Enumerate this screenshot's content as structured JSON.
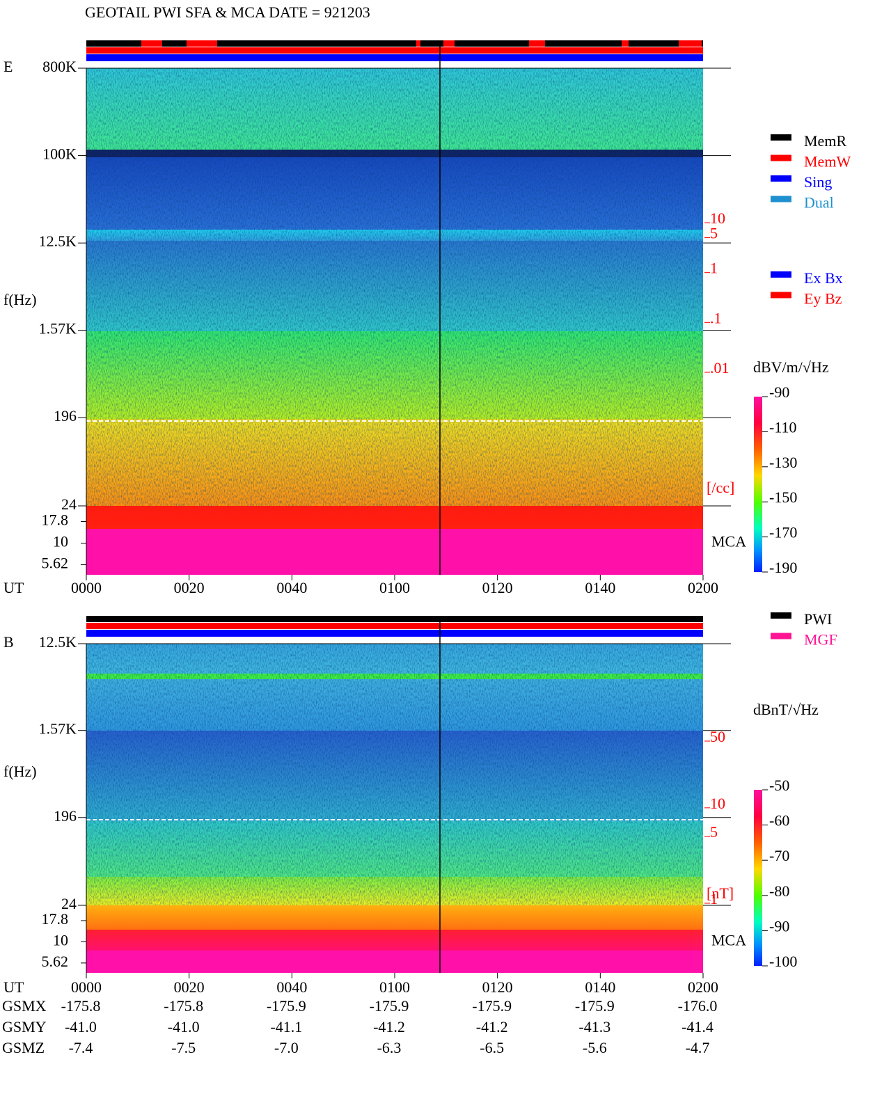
{
  "title": "GEOTAIL  PWI SFA & MCA   DATE = 921203",
  "chart_data": [
    {
      "type": "spectrogram",
      "panel_label": "E",
      "ylabel": "f(Hz)",
      "xlabel": "UT",
      "log_y": true,
      "ylim": [
        24,
        800000
      ],
      "yticks": [
        {
          "value": 800000,
          "label": "800K"
        },
        {
          "value": 100000,
          "label": "100K"
        },
        {
          "value": 12500,
          "label": "12.5K"
        },
        {
          "value": 1570,
          "label": "1.57K"
        },
        196,
        24
      ],
      "mca_label": "MCA",
      "mca_ylim": [
        4.3,
        27
      ],
      "mca_yticks": [
        17.8,
        10,
        5.62
      ],
      "xlim": [
        0,
        120
      ],
      "xticks": [
        {
          "value": 0,
          "label": "0000"
        },
        {
          "value": 20,
          "label": "0020"
        },
        {
          "value": 40,
          "label": "0040"
        },
        {
          "value": 60,
          "label": "0100"
        },
        {
          "value": 80,
          "label": "0120"
        },
        {
          "value": 100,
          "label": "0140"
        },
        {
          "value": 120,
          "label": "0200"
        }
      ],
      "colorbar_label": "dBV/m/√Hz",
      "clim": [
        -190,
        -90
      ],
      "cticks": [
        -90,
        -110,
        -130,
        -150,
        -170,
        -190
      ],
      "right_axis_label": "[/cc]",
      "right_lim": [
        0.01,
        10
      ],
      "right_ticks": [
        10,
        5,
        1,
        {
          "value": 0.1,
          "label": ".1"
        },
        {
          "value": 0.01,
          "label": ".01"
        }
      ],
      "legend": [
        {
          "name": "MemR",
          "color": "#000000"
        },
        {
          "name": "MemW",
          "color": "#ff0000"
        },
        {
          "name": "Sing",
          "color": "#0000ff"
        },
        {
          "name": "Dual",
          "color": "#1e90d0"
        }
      ],
      "legend2": [
        {
          "name": "Ex Bx",
          "color": "#0000ff"
        },
        {
          "name": "Ey Bz",
          "color": "#ff0000"
        }
      ]
    },
    {
      "type": "spectrogram",
      "panel_label": "B",
      "ylabel": "f(Hz)",
      "xlabel": "UT",
      "log_y": true,
      "ylim": [
        24,
        12500
      ],
      "yticks": [
        {
          "value": 12500,
          "label": "12.5K"
        },
        {
          "value": 1570,
          "label": "1.57K"
        },
        196,
        24
      ],
      "mca_label": "MCA",
      "mca_ylim": [
        4.3,
        27
      ],
      "mca_yticks": [
        17.8,
        10,
        5.62
      ],
      "xlim": [
        0,
        120
      ],
      "xticks": [
        {
          "value": 0,
          "label": "0000"
        },
        {
          "value": 20,
          "label": "0020"
        },
        {
          "value": 40,
          "label": "0040"
        },
        {
          "value": 60,
          "label": "0100"
        },
        {
          "value": 80,
          "label": "0120"
        },
        {
          "value": 100,
          "label": "0140"
        },
        {
          "value": 120,
          "label": "0200"
        }
      ],
      "colorbar_label": "dBnT/√Hz",
      "clim": [
        -100,
        -50
      ],
      "cticks": [
        -50,
        -60,
        -70,
        -80,
        -90,
        -100
      ],
      "right_axis_label": "[nT]",
      "right_lim": [
        1,
        50
      ],
      "right_ticks": [
        50,
        10,
        5,
        1
      ],
      "legend": [
        {
          "name": "PWI",
          "color": "#000000"
        },
        {
          "name": "MGF",
          "color": "#ff1493"
        }
      ]
    }
  ],
  "orbit": {
    "rows": [
      {
        "label": "GSMX",
        "values": [
          "-175.8",
          "-175.8",
          "-175.9",
          "-175.9",
          "-175.9",
          "-175.9",
          "-176.0"
        ]
      },
      {
        "label": "GSMY",
        "values": [
          "-41.0",
          "-41.0",
          "-41.1",
          "-41.2",
          "-41.2",
          "-41.3",
          "-41.4"
        ]
      },
      {
        "label": "GSMZ",
        "values": [
          "-7.4",
          "-7.5",
          "-7.0",
          "-6.3",
          "-6.5",
          "-5.6",
          "-4.7"
        ]
      }
    ]
  }
}
